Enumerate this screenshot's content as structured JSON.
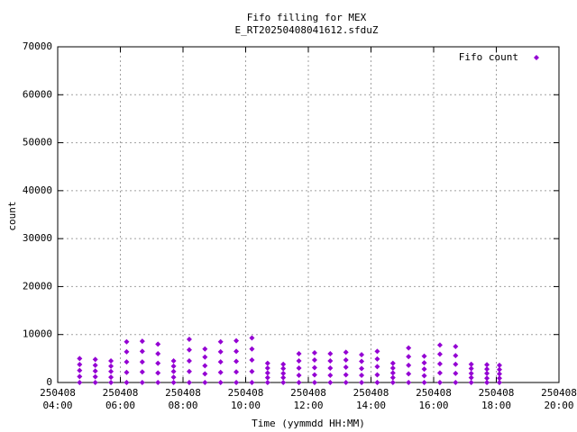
{
  "chart_data": {
    "type": "scatter",
    "title": "Fifo filling for MEX",
    "subtitle": "E_RT20250408041612.sfduZ",
    "x_label": "Time (yymmdd HH:MM)",
    "y_label": "count",
    "xlim": [
      4,
      20
    ],
    "xticks": [
      {
        "value": 4,
        "label": "250408\n04:00"
      },
      {
        "value": 6,
        "label": "250408\n06:00"
      },
      {
        "value": 8,
        "label": "250408\n08:00"
      },
      {
        "value": 10,
        "label": "250408\n10:00"
      },
      {
        "value": 12,
        "label": "250408\n12:00"
      },
      {
        "value": 14,
        "label": "250408\n14:00"
      },
      {
        "value": 16,
        "label": "250408\n16:00"
      },
      {
        "value": 18,
        "label": "250408\n18:00"
      },
      {
        "value": 20,
        "label": "250408\n20:00"
      }
    ],
    "ylim": [
      0,
      70000
    ],
    "yticks": [
      0,
      10000,
      20000,
      30000,
      40000,
      50000,
      60000,
      70000
    ],
    "grid": true,
    "legend": "top-right",
    "x": [
      4.7,
      4.7,
      4.7,
      4.7,
      4.7,
      5.2,
      5.2,
      5.2,
      5.2,
      5.2,
      5.7,
      5.7,
      5.7,
      5.7,
      5.7,
      6.2,
      6.2,
      6.2,
      6.2,
      6.2,
      6.7,
      6.7,
      6.7,
      6.7,
      6.7,
      7.2,
      7.2,
      7.2,
      7.2,
      7.2,
      7.7,
      7.7,
      7.7,
      7.7,
      7.7,
      8.2,
      8.2,
      8.2,
      8.2,
      8.2,
      8.7,
      8.7,
      8.7,
      8.7,
      8.7,
      9.2,
      9.2,
      9.2,
      9.2,
      9.2,
      9.7,
      9.7,
      9.7,
      9.7,
      9.7,
      10.2,
      10.2,
      10.2,
      10.2,
      10.2,
      10.7,
      10.7,
      10.7,
      10.7,
      10.7,
      11.2,
      11.2,
      11.2,
      11.2,
      11.2,
      11.7,
      11.7,
      11.7,
      11.7,
      11.7,
      12.2,
      12.2,
      12.2,
      12.2,
      12.2,
      12.7,
      12.7,
      12.7,
      12.7,
      12.7,
      13.2,
      13.2,
      13.2,
      13.2,
      13.2,
      13.7,
      13.7,
      13.7,
      13.7,
      13.7,
      14.2,
      14.2,
      14.2,
      14.2,
      14.2,
      14.7,
      14.7,
      14.7,
      14.7,
      14.7,
      15.2,
      15.2,
      15.2,
      15.2,
      15.2,
      15.7,
      15.7,
      15.7,
      15.7,
      15.7,
      16.2,
      16.2,
      16.2,
      16.2,
      16.2,
      16.7,
      16.7,
      16.7,
      16.7,
      16.7,
      17.2,
      17.2,
      17.2,
      17.2,
      17.2,
      17.7,
      17.7,
      17.7,
      17.7,
      17.7,
      18.1,
      18.1,
      18.1,
      18.1,
      18.1
    ],
    "series": [
      {
        "name": "Fifo count",
        "color": "#9400d3",
        "values": [
          0,
          1250,
          2500,
          3750,
          5000,
          0,
          1200,
          2400,
          3600,
          4800,
          0,
          1100,
          2300,
          3400,
          4500,
          0,
          2100,
          4300,
          6400,
          8500,
          0,
          2200,
          4300,
          6500,
          8600,
          0,
          2000,
          4000,
          6000,
          8000,
          0,
          1100,
          2300,
          3400,
          4500,
          0,
          2300,
          4500,
          6800,
          9000,
          0,
          1800,
          3500,
          5300,
          7000,
          0,
          2100,
          4300,
          6400,
          8500,
          0,
          2200,
          4400,
          6500,
          8700,
          0,
          2300,
          4700,
          7000,
          9300,
          0,
          1000,
          2000,
          3000,
          4000,
          0,
          1000,
          1900,
          2900,
          3800,
          0,
          1500,
          3000,
          4500,
          6000,
          0,
          1600,
          3100,
          4700,
          6200,
          0,
          1500,
          3000,
          4500,
          6000,
          0,
          1600,
          3200,
          4700,
          6300,
          0,
          1500,
          2900,
          4400,
          5800,
          0,
          1600,
          3300,
          4900,
          6500,
          0,
          1000,
          2000,
          3000,
          4000,
          0,
          1800,
          3600,
          5400,
          7200,
          0,
          1400,
          2800,
          4100,
          5500,
          0,
          2000,
          3900,
          5900,
          7800,
          0,
          1900,
          3800,
          5600,
          7500,
          0,
          1000,
          1900,
          2900,
          3800,
          0,
          900,
          1900,
          2800,
          3700,
          0,
          900,
          1800,
          2700,
          3600
        ]
      }
    ]
  }
}
